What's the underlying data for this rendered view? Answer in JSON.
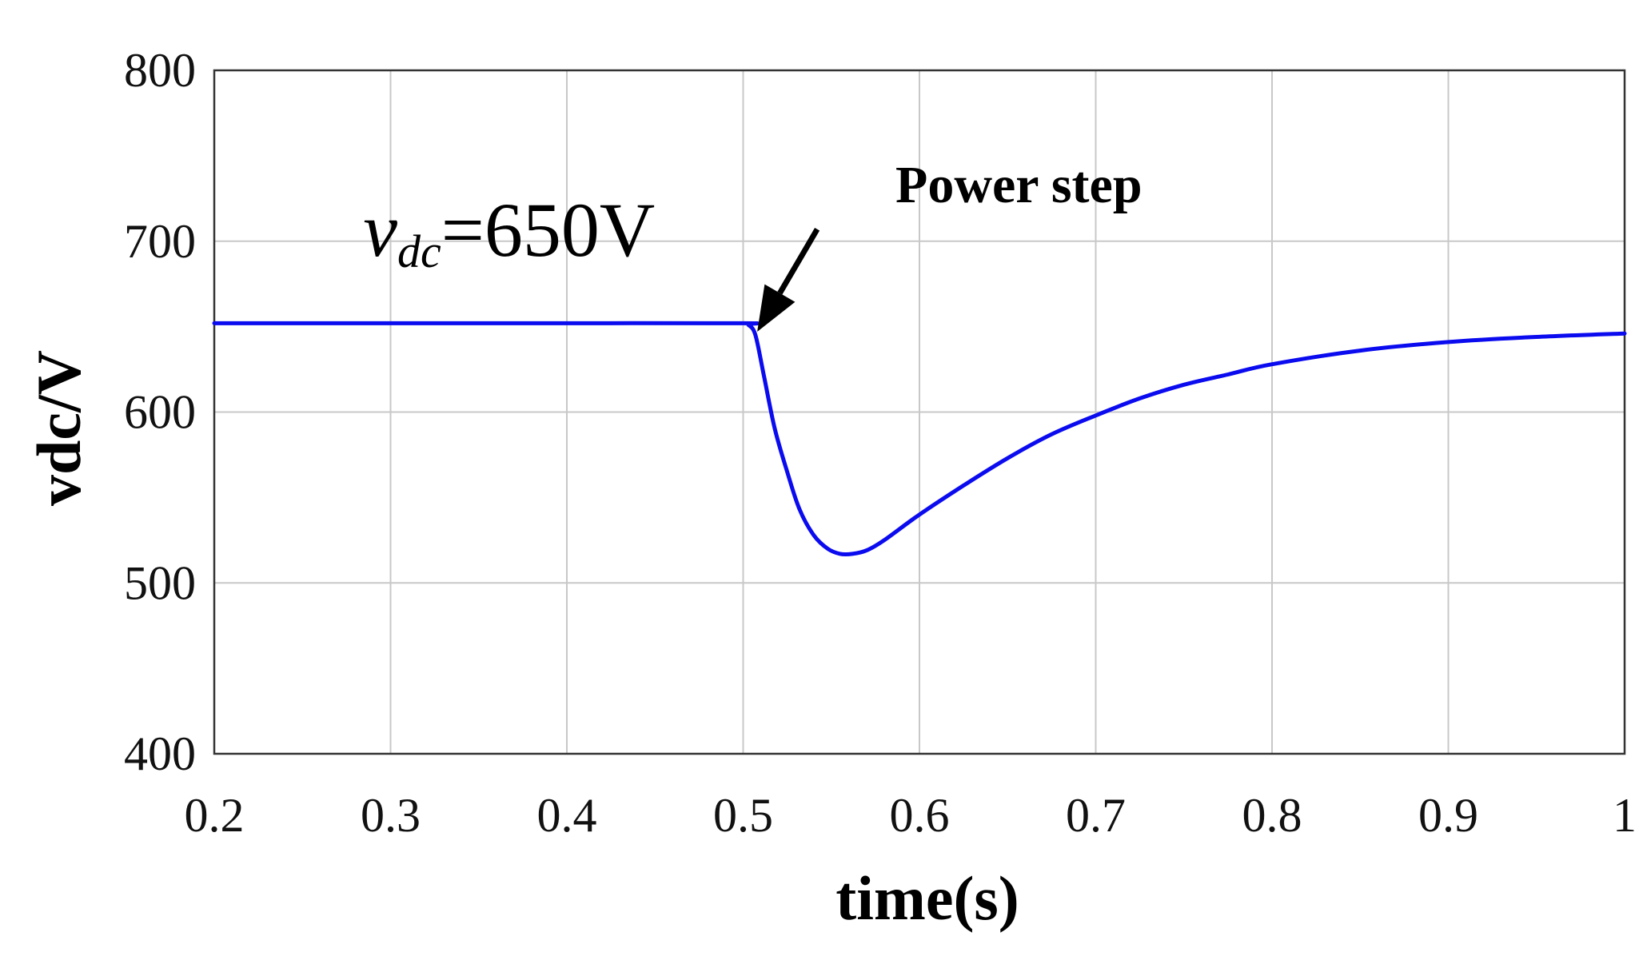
{
  "chart_data": {
    "type": "line",
    "xlabel": "time(s)",
    "ylabel": "vdc/V",
    "xlim": [
      0.2,
      1.0
    ],
    "ylim": [
      400,
      800
    ],
    "xticks": [
      0.2,
      0.3,
      0.4,
      0.5,
      0.6,
      0.7,
      0.8,
      0.9,
      1.0
    ],
    "xtick_labels": [
      "0.2",
      "0.3",
      "0.4",
      "0.5",
      "0.6",
      "0.7",
      "0.8",
      "0.9",
      "1"
    ],
    "yticks": [
      400,
      500,
      600,
      700,
      800
    ],
    "ytick_labels": [
      "400",
      "500",
      "600",
      "700",
      "800"
    ],
    "grid": true,
    "series": [
      {
        "name": "vdc",
        "color": "#0b0bef",
        "x": [
          0.2,
          0.3,
          0.4,
          0.5,
          0.503,
          0.507,
          0.512,
          0.518,
          0.525,
          0.532,
          0.54,
          0.548,
          0.555,
          0.562,
          0.57,
          0.58,
          0.6,
          0.625,
          0.65,
          0.675,
          0.7,
          0.725,
          0.75,
          0.775,
          0.8,
          0.85,
          0.9,
          0.95,
          1.0
        ],
        "y": [
          652,
          652,
          652,
          652,
          651,
          645,
          620,
          590,
          565,
          543,
          528,
          520,
          517,
          517,
          519,
          525,
          540,
          557,
          573,
          587,
          598,
          608,
          616,
          622,
          628,
          636,
          641,
          644,
          646
        ]
      }
    ],
    "annotations": [
      {
        "text": "Power step",
        "arrow_to": [
          0.508,
          647
        ],
        "arrow_from": [
          0.542,
          707
        ]
      }
    ],
    "label": {
      "var": "v",
      "sub": "dc",
      "rest": "=650V",
      "anchor": [
        0.28,
        700
      ]
    }
  }
}
